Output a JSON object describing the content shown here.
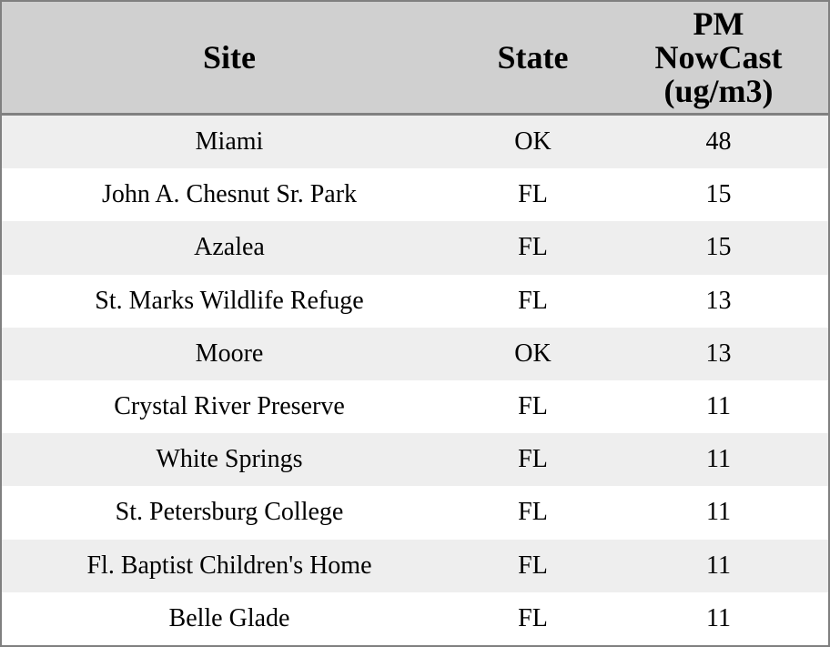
{
  "chart_data": {
    "type": "table",
    "title": "",
    "columns": [
      "Site",
      "State",
      "PM NowCast (ug/m3)"
    ],
    "rows": [
      [
        "Miami",
        "OK",
        48
      ],
      [
        "John A. Chesnut Sr. Park",
        "FL",
        15
      ],
      [
        "Azalea",
        "FL",
        15
      ],
      [
        "St. Marks Wildlife Refuge",
        "FL",
        13
      ],
      [
        "Moore",
        "OK",
        13
      ],
      [
        "Crystal River Preserve",
        "FL",
        11
      ],
      [
        "White Springs",
        "FL",
        11
      ],
      [
        "St. Petersburg College",
        "FL",
        11
      ],
      [
        "Fl. Baptist Children's Home",
        "FL",
        11
      ],
      [
        "Belle Glade",
        "FL",
        11
      ]
    ],
    "layout": {
      "striped_rows": true,
      "header_position": "top",
      "text_align": "center"
    }
  },
  "colors": {
    "header_bg": "#d0d0d0",
    "border": "#808080",
    "row_stripe": "#eeeeee",
    "row_plain": "#ffffff",
    "text": "#000000"
  }
}
